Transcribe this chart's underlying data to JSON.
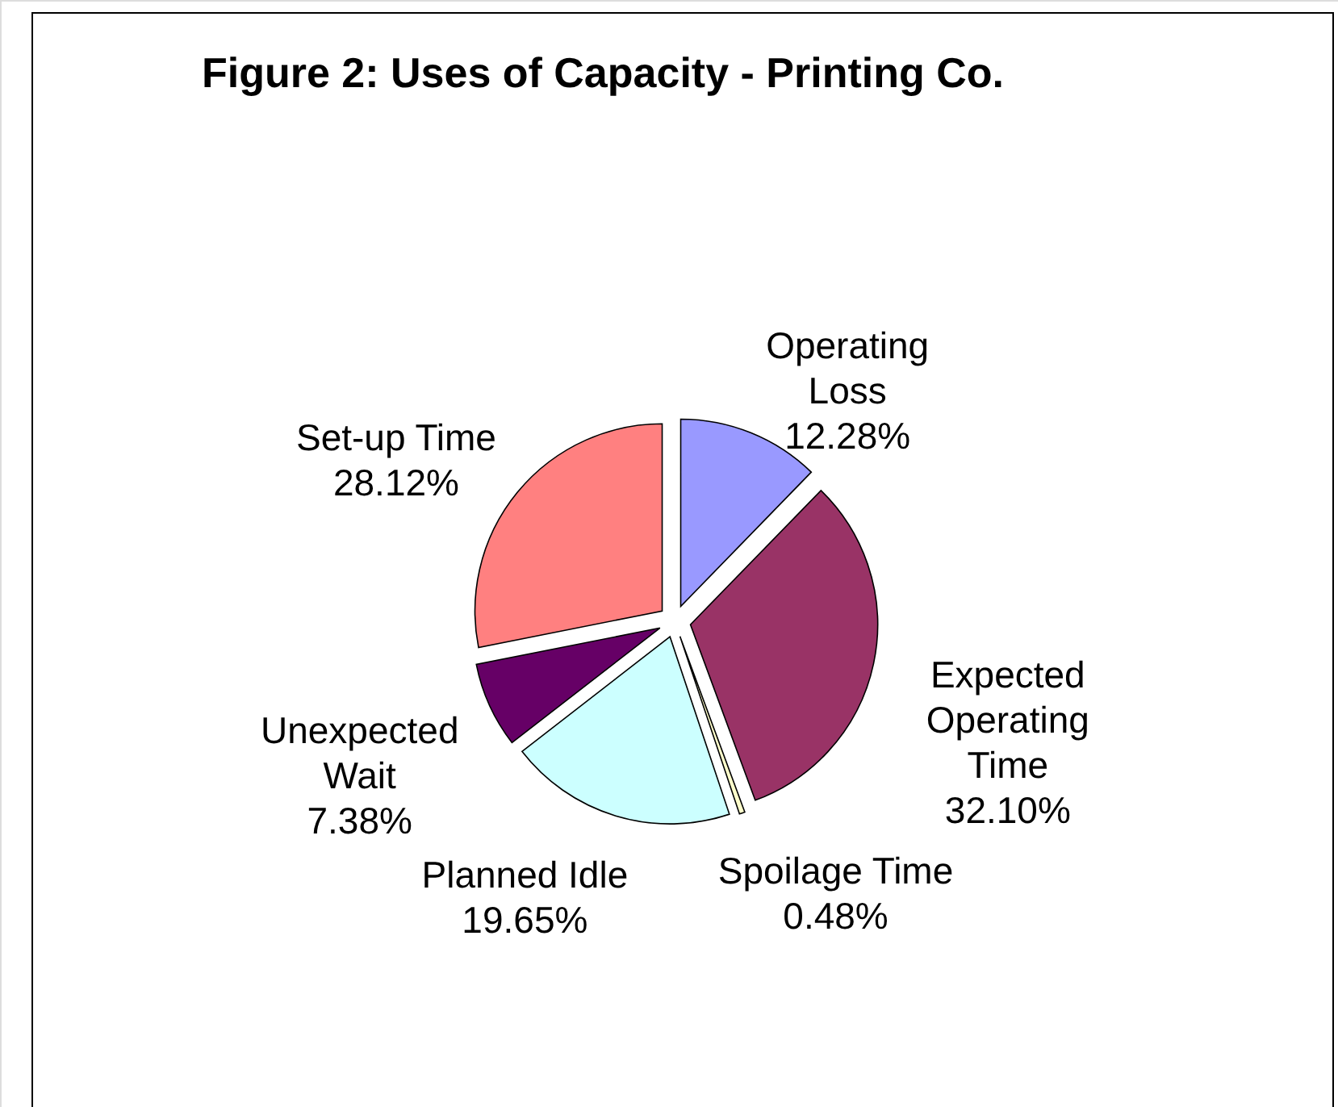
{
  "chart_data": {
    "type": "pie",
    "title": "Figure 2: Uses of Capacity - Printing Co.",
    "categories": [
      "Operating Loss",
      "Expected Operating Time",
      "Spoilage Time",
      "Planned Idle",
      "Unexpected Wait",
      "Set-up Time"
    ],
    "values": [
      12.28,
      32.1,
      0.48,
      19.65,
      7.38,
      28.12
    ],
    "colors": [
      "#9999ff",
      "#993366",
      "#ffffcc",
      "#ccffff",
      "#660066",
      "#ff8080"
    ],
    "value_labels": [
      "12.28%",
      "32.10%",
      "0.48%",
      "19.65%",
      "7.38%",
      "28.12%"
    ]
  }
}
